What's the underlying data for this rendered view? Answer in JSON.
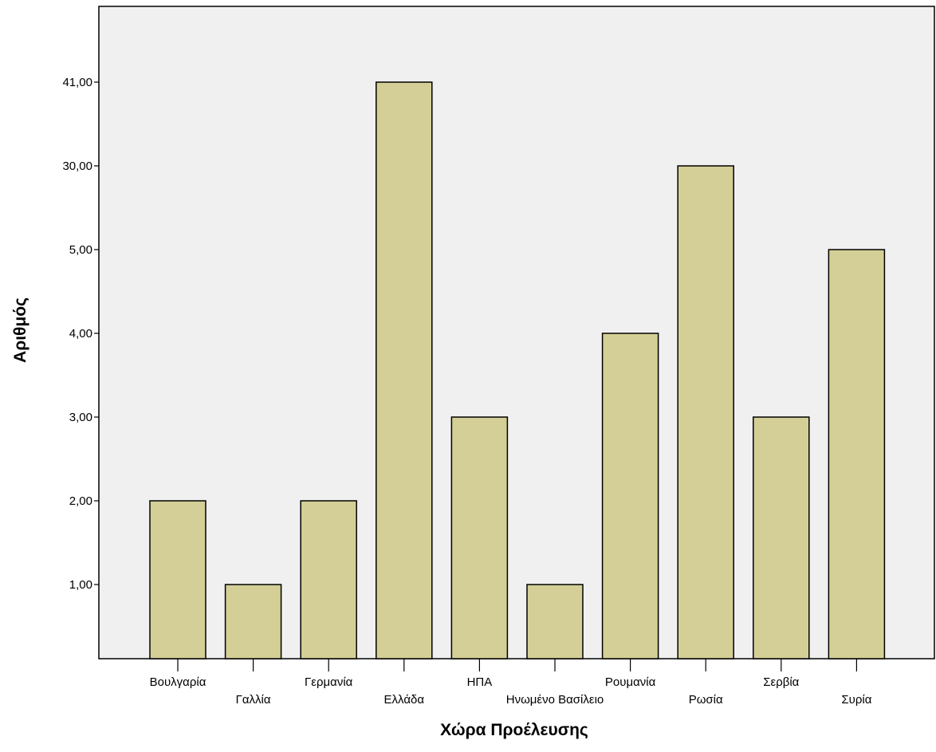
{
  "chart_data": {
    "type": "bar",
    "xlabel": "Χώρα Προέλευσης",
    "ylabel": "Αριθμός",
    "categories": [
      "Βουλγαρία",
      "Γαλλία",
      "Γερμανία",
      "Ελλάδα",
      "ΗΠΑ",
      "Ηνωμένο Βασίλειο",
      "Ρουμανία",
      "Ρωσία",
      "Σερβία",
      "Συρία"
    ],
    "category_label_row": [
      1,
      2,
      1,
      2,
      1,
      2,
      1,
      2,
      1,
      2
    ],
    "y_ticks": [
      "1,00",
      "2,00",
      "3,00",
      "4,00",
      "5,00",
      "30,00",
      "41,00"
    ],
    "values": [
      "2,00",
      "1,00",
      "2,00",
      "41,00",
      "3,00",
      "1,00",
      "4,00",
      "30,00",
      "3,00",
      "5,00"
    ],
    "y_scale": "categorical",
    "grid": false,
    "legend": "none",
    "bar_color": "#d4cf96",
    "plot_background": "#f0f0f0"
  }
}
